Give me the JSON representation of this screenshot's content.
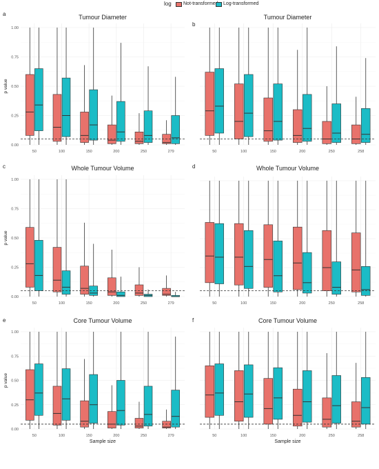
{
  "legend": {
    "title": "log",
    "entries": [
      {
        "label": "Not-transformed",
        "color": "#E8726B"
      },
      {
        "label": "Log-transformed",
        "color": "#1BBCC6"
      }
    ]
  },
  "chart_data": [
    {
      "panel": "a",
      "type": "box",
      "title": "Tumour Diameter",
      "xlabel": "",
      "ylabel": "p value",
      "categories": [
        "50",
        "100",
        "150",
        "200",
        "250",
        "279"
      ],
      "ylim": [
        0,
        1
      ],
      "yticks": [
        0,
        0.25,
        0.5,
        0.75,
        1.0
      ],
      "reference_line": 0.05,
      "series": [
        {
          "name": "Not-transformed",
          "color": "#E8726B",
          "boxes": [
            {
              "min": 0.0,
              "q1": 0.08,
              "median": 0.28,
              "q3": 0.6,
              "max": 1.0
            },
            {
              "min": 0.0,
              "q1": 0.03,
              "median": 0.15,
              "q3": 0.43,
              "max": 1.0
            },
            {
              "min": 0.0,
              "q1": 0.02,
              "median": 0.08,
              "q3": 0.28,
              "max": 0.68
            },
            {
              "min": 0.0,
              "q1": 0.01,
              "median": 0.04,
              "q3": 0.17,
              "max": 0.42
            },
            {
              "min": 0.0,
              "q1": 0.01,
              "median": 0.03,
              "q3": 0.11,
              "max": 0.27
            },
            {
              "min": 0.0,
              "q1": 0.01,
              "median": 0.02,
              "q3": 0.09,
              "max": 0.21
            }
          ]
        },
        {
          "name": "Log-transformed",
          "color": "#1BBCC6",
          "boxes": [
            {
              "min": 0.0,
              "q1": 0.12,
              "median": 0.34,
              "q3": 0.65,
              "max": 1.0
            },
            {
              "min": 0.0,
              "q1": 0.07,
              "median": 0.25,
              "q3": 0.57,
              "max": 1.0
            },
            {
              "min": 0.0,
              "q1": 0.04,
              "median": 0.17,
              "q3": 0.47,
              "max": 1.0
            },
            {
              "min": 0.0,
              "q1": 0.03,
              "median": 0.11,
              "q3": 0.37,
              "max": 0.87
            },
            {
              "min": 0.0,
              "q1": 0.02,
              "median": 0.08,
              "q3": 0.29,
              "max": 0.67
            },
            {
              "min": 0.0,
              "q1": 0.01,
              "median": 0.06,
              "q3": 0.25,
              "max": 0.58
            }
          ]
        }
      ]
    },
    {
      "panel": "b",
      "type": "box",
      "title": "Tumour Diameter",
      "xlabel": "",
      "ylabel": "",
      "categories": [
        "50",
        "100",
        "150",
        "200",
        "250",
        "258"
      ],
      "ylim": [
        0,
        1
      ],
      "yticks": [
        0,
        0.25,
        0.5,
        0.75,
        1.0
      ],
      "reference_line": 0.05,
      "series": [
        {
          "name": "Not-transformed",
          "color": "#E8726B",
          "boxes": [
            {
              "min": 0.0,
              "q1": 0.08,
              "median": 0.29,
              "q3": 0.62,
              "max": 1.0
            },
            {
              "min": 0.0,
              "q1": 0.05,
              "median": 0.2,
              "q3": 0.52,
              "max": 1.0
            },
            {
              "min": 0.0,
              "q1": 0.03,
              "median": 0.12,
              "q3": 0.4,
              "max": 1.0
            },
            {
              "min": 0.0,
              "q1": 0.02,
              "median": 0.08,
              "q3": 0.3,
              "max": 0.81
            },
            {
              "min": 0.0,
              "q1": 0.01,
              "median": 0.05,
              "q3": 0.2,
              "max": 0.5
            },
            {
              "min": 0.0,
              "q1": 0.01,
              "median": 0.05,
              "q3": 0.17,
              "max": 0.41
            }
          ]
        },
        {
          "name": "Log-transformed",
          "color": "#1BBCC6",
          "boxes": [
            {
              "min": 0.0,
              "q1": 0.1,
              "median": 0.33,
              "q3": 0.65,
              "max": 1.0
            },
            {
              "min": 0.0,
              "q1": 0.07,
              "median": 0.27,
              "q3": 0.6,
              "max": 1.0
            },
            {
              "min": 0.0,
              "q1": 0.04,
              "median": 0.2,
              "q3": 0.52,
              "max": 1.0
            },
            {
              "min": 0.0,
              "q1": 0.03,
              "median": 0.14,
              "q3": 0.43,
              "max": 1.0
            },
            {
              "min": 0.0,
              "q1": 0.02,
              "median": 0.1,
              "q3": 0.35,
              "max": 0.84
            },
            {
              "min": 0.0,
              "q1": 0.02,
              "median": 0.09,
              "q3": 0.31,
              "max": 0.74
            }
          ]
        }
      ]
    },
    {
      "panel": "c",
      "type": "box",
      "title": "Whole Tumour Volume",
      "xlabel": "",
      "ylabel": "p value",
      "categories": [
        "50",
        "100",
        "150",
        "200",
        "250",
        "279"
      ],
      "ylim": [
        0,
        1
      ],
      "yticks": [
        0,
        0.25,
        0.5,
        0.75,
        1.0
      ],
      "reference_line": 0.05,
      "series": [
        {
          "name": "Not-transformed",
          "color": "#E8726B",
          "boxes": [
            {
              "min": 0.0,
              "q1": 0.08,
              "median": 0.28,
              "q3": 0.59,
              "max": 1.0
            },
            {
              "min": 0.0,
              "q1": 0.04,
              "median": 0.14,
              "q3": 0.42,
              "max": 1.0
            },
            {
              "min": 0.0,
              "q1": 0.02,
              "median": 0.07,
              "q3": 0.26,
              "max": 0.63
            },
            {
              "min": 0.0,
              "q1": 0.01,
              "median": 0.04,
              "q3": 0.16,
              "max": 0.4
            },
            {
              "min": 0.0,
              "q1": 0.01,
              "median": 0.03,
              "q3": 0.1,
              "max": 0.25
            },
            {
              "min": 0.0,
              "q1": 0.01,
              "median": 0.02,
              "q3": 0.07,
              "max": 0.18
            }
          ]
        },
        {
          "name": "Log-transformed",
          "color": "#1BBCC6",
          "boxes": [
            {
              "min": 0.0,
              "q1": 0.05,
              "median": 0.18,
              "q3": 0.48,
              "max": 1.0
            },
            {
              "min": 0.0,
              "q1": 0.02,
              "median": 0.08,
              "q3": 0.22,
              "max": 1.0
            },
            {
              "min": 0.0,
              "q1": 0.01,
              "median": 0.03,
              "q3": 0.09,
              "max": 0.45
            },
            {
              "min": 0.0,
              "q1": 0.0,
              "median": 0.01,
              "q3": 0.04,
              "max": 0.17
            },
            {
              "min": 0.0,
              "q1": 0.0,
              "median": 0.01,
              "q3": 0.02,
              "max": 0.06
            },
            {
              "min": 0.0,
              "q1": 0.0,
              "median": 0.0,
              "q3": 0.01,
              "max": 0.04
            }
          ]
        }
      ]
    },
    {
      "panel": "d",
      "type": "box",
      "title": "Whole Tumour Volume",
      "xlabel": "",
      "ylabel": "",
      "categories": [
        "50",
        "100",
        "150",
        "200",
        "250",
        "258"
      ],
      "ylim": [
        0,
        1
      ],
      "yticks": [
        0,
        0.25,
        0.5,
        0.75,
        1.0
      ],
      "reference_line": 0.05,
      "series": [
        {
          "name": "Not-transformed",
          "color": "#E8726B",
          "boxes": [
            {
              "min": 0.0,
              "q1": 0.12,
              "median": 0.35,
              "q3": 0.64,
              "max": 1.0
            },
            {
              "min": 0.0,
              "q1": 0.1,
              "median": 0.34,
              "q3": 0.63,
              "max": 1.0
            },
            {
              "min": 0.0,
              "q1": 0.08,
              "median": 0.32,
              "q3": 0.62,
              "max": 1.0
            },
            {
              "min": 0.0,
              "q1": 0.06,
              "median": 0.29,
              "q3": 0.6,
              "max": 1.0
            },
            {
              "min": 0.0,
              "q1": 0.05,
              "median": 0.25,
              "q3": 0.57,
              "max": 1.0
            },
            {
              "min": 0.0,
              "q1": 0.04,
              "median": 0.23,
              "q3": 0.55,
              "max": 1.0
            }
          ]
        },
        {
          "name": "Log-transformed",
          "color": "#1BBCC6",
          "boxes": [
            {
              "min": 0.0,
              "q1": 0.11,
              "median": 0.34,
              "q3": 0.63,
              "max": 1.0
            },
            {
              "min": 0.0,
              "q1": 0.07,
              "median": 0.26,
              "q3": 0.57,
              "max": 1.0
            },
            {
              "min": 0.0,
              "q1": 0.04,
              "median": 0.18,
              "q3": 0.48,
              "max": 1.0
            },
            {
              "min": 0.0,
              "q1": 0.03,
              "median": 0.12,
              "q3": 0.38,
              "max": 1.0
            },
            {
              "min": 0.0,
              "q1": 0.02,
              "median": 0.08,
              "q3": 0.3,
              "max": 1.0
            },
            {
              "min": 0.0,
              "q1": 0.01,
              "median": 0.06,
              "q3": 0.26,
              "max": 1.0
            }
          ]
        }
      ]
    },
    {
      "panel": "e",
      "type": "box",
      "title": "Core Tumour Volume",
      "xlabel": "Sample size",
      "ylabel": "p value",
      "categories": [
        "50",
        "100",
        "150",
        "200",
        "250",
        "279"
      ],
      "ylim": [
        0,
        1
      ],
      "yticks": [
        0,
        0.25,
        0.5,
        0.75,
        1.0
      ],
      "reference_line": 0.05,
      "series": [
        {
          "name": "Not-transformed",
          "color": "#E8726B",
          "boxes": [
            {
              "min": 0.0,
              "q1": 0.09,
              "median": 0.3,
              "q3": 0.61,
              "max": 1.0
            },
            {
              "min": 0.0,
              "q1": 0.04,
              "median": 0.16,
              "q3": 0.44,
              "max": 1.0
            },
            {
              "min": 0.0,
              "q1": 0.02,
              "median": 0.08,
              "q3": 0.29,
              "max": 0.72
            },
            {
              "min": 0.0,
              "q1": 0.01,
              "median": 0.05,
              "q3": 0.18,
              "max": 0.45
            },
            {
              "min": 0.0,
              "q1": 0.01,
              "median": 0.03,
              "q3": 0.11,
              "max": 0.28
            },
            {
              "min": 0.0,
              "q1": 0.01,
              "median": 0.02,
              "q3": 0.08,
              "max": 0.2
            }
          ]
        },
        {
          "name": "Log-transformed",
          "color": "#1BBCC6",
          "boxes": [
            {
              "min": 0.0,
              "q1": 0.14,
              "median": 0.37,
              "q3": 0.67,
              "max": 1.0
            },
            {
              "min": 0.0,
              "q1": 0.09,
              "median": 0.31,
              "q3": 0.62,
              "max": 1.0
            },
            {
              "min": 0.0,
              "q1": 0.06,
              "median": 0.25,
              "q3": 0.56,
              "max": 1.0
            },
            {
              "min": 0.0,
              "q1": 0.04,
              "median": 0.19,
              "q3": 0.5,
              "max": 1.0
            },
            {
              "min": 0.0,
              "q1": 0.03,
              "median": 0.15,
              "q3": 0.44,
              "max": 1.0
            },
            {
              "min": 0.0,
              "q1": 0.02,
              "median": 0.13,
              "q3": 0.4,
              "max": 0.95
            }
          ]
        }
      ]
    },
    {
      "panel": "f",
      "type": "box",
      "title": "Core Tumour Volume",
      "xlabel": "Sample size",
      "ylabel": "",
      "categories": [
        "50",
        "100",
        "150",
        "200",
        "250",
        "258"
      ],
      "ylim": [
        0,
        1
      ],
      "yticks": [
        0,
        0.25,
        0.5,
        0.75,
        1.0
      ],
      "reference_line": 0.05,
      "series": [
        {
          "name": "Not-transformed",
          "color": "#E8726B",
          "boxes": [
            {
              "min": 0.0,
              "q1": 0.12,
              "median": 0.35,
              "q3": 0.65,
              "max": 1.0
            },
            {
              "min": 0.0,
              "q1": 0.08,
              "median": 0.28,
              "q3": 0.6,
              "max": 1.0
            },
            {
              "min": 0.0,
              "q1": 0.05,
              "median": 0.21,
              "q3": 0.52,
              "max": 1.0
            },
            {
              "min": 0.0,
              "q1": 0.03,
              "median": 0.14,
              "q3": 0.41,
              "max": 1.0
            },
            {
              "min": 0.0,
              "q1": 0.02,
              "median": 0.1,
              "q3": 0.32,
              "max": 0.78
            },
            {
              "min": 0.0,
              "q1": 0.02,
              "median": 0.08,
              "q3": 0.28,
              "max": 0.68
            }
          ]
        },
        {
          "name": "Log-transformed",
          "color": "#1BBCC6",
          "boxes": [
            {
              "min": 0.0,
              "q1": 0.14,
              "median": 0.37,
              "q3": 0.67,
              "max": 1.0
            },
            {
              "min": 0.0,
              "q1": 0.12,
              "median": 0.36,
              "q3": 0.66,
              "max": 1.0
            },
            {
              "min": 0.0,
              "q1": 0.1,
              "median": 0.32,
              "q3": 0.63,
              "max": 1.0
            },
            {
              "min": 0.0,
              "q1": 0.07,
              "median": 0.28,
              "q3": 0.6,
              "max": 1.0
            },
            {
              "min": 0.0,
              "q1": 0.06,
              "median": 0.24,
              "q3": 0.55,
              "max": 1.0
            },
            {
              "min": 0.0,
              "q1": 0.05,
              "median": 0.22,
              "q3": 0.53,
              "max": 1.0
            }
          ]
        }
      ]
    }
  ]
}
